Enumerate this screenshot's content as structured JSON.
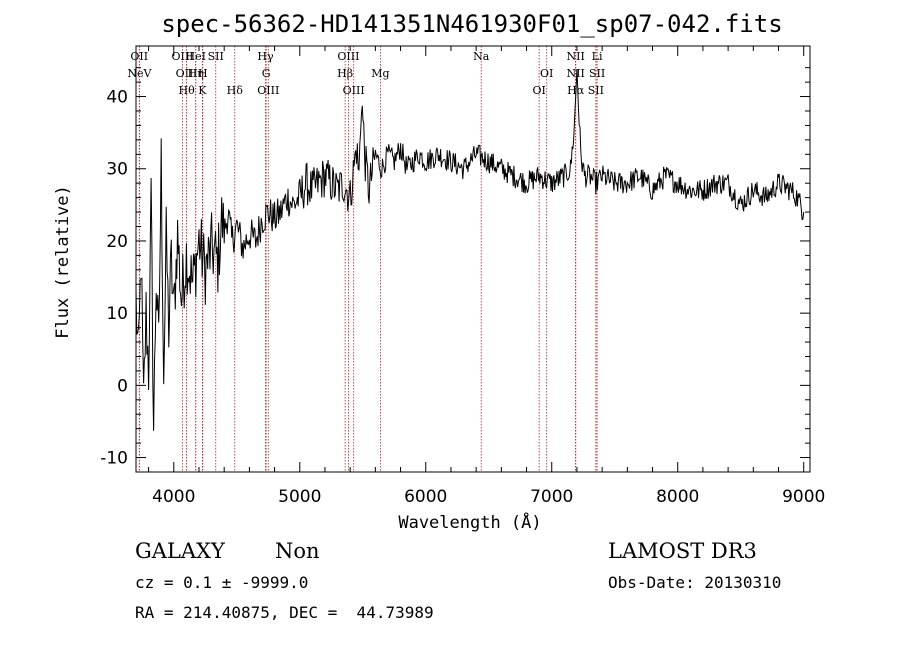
{
  "chart_data": {
    "type": "line",
    "title": "spec-56362-HD141351N461930F01_sp07-042.fits",
    "xlabel": "Wavelength (Å)",
    "ylabel": "Flux (relative)",
    "xlim": [
      3700,
      9050
    ],
    "ylim": [
      -12,
      47
    ],
    "xticks": [
      4000,
      5000,
      6000,
      7000,
      8000,
      9000
    ],
    "yticks": [
      -10,
      0,
      10,
      20,
      30,
      40
    ],
    "grid": false,
    "line_color": "#000000",
    "marker_color": "#b22222",
    "series": [
      {
        "x": [
          3700,
          3720,
          3740,
          3760,
          3780,
          3800,
          3820,
          3840,
          3860,
          3880,
          3900,
          3920,
          3940,
          3960,
          3980,
          4000,
          4030,
          4060,
          4100,
          4150,
          4200,
          4250,
          4300,
          4350,
          4380,
          4400,
          4430,
          4460,
          4500,
          4550,
          4600,
          4650,
          4700,
          4750,
          4800,
          4850,
          4900,
          4950,
          5000,
          5050,
          5100,
          5150,
          5200,
          5250,
          5300,
          5350,
          5400,
          5450,
          5470,
          5490,
          5520,
          5550,
          5600,
          5650,
          5700,
          5750,
          5800,
          5850,
          5900,
          5950,
          6000,
          6100,
          6200,
          6300,
          6400,
          6500,
          6600,
          6700,
          6800,
          6900,
          7000,
          7100,
          7150,
          7180,
          7200,
          7230,
          7260,
          7300,
          7350,
          7400,
          7500,
          7600,
          7700,
          7800,
          7900,
          8000,
          8100,
          8200,
          8300,
          8400,
          8500,
          8600,
          8700,
          8800,
          8900,
          8950,
          9000
        ],
        "y": [
          12,
          3,
          18,
          -3,
          10,
          2,
          25,
          -6,
          15,
          5,
          31,
          2,
          20,
          8,
          17,
          10,
          21,
          12,
          18,
          14,
          20,
          16,
          19,
          17,
          23,
          21,
          24,
          20,
          22,
          19,
          21,
          20,
          23,
          24,
          23,
          24,
          26,
          25,
          26,
          28,
          27,
          28,
          29,
          28,
          27,
          28,
          26,
          33,
          29,
          40,
          31,
          27,
          32,
          30,
          32,
          31,
          33,
          30,
          31,
          32,
          31,
          32,
          31,
          30,
          32,
          31,
          30,
          29,
          28,
          29,
          28,
          29,
          30,
          36,
          44,
          32,
          29,
          29,
          28,
          29,
          28,
          28,
          29,
          27,
          29,
          28,
          27,
          27,
          28,
          28,
          25,
          27,
          26,
          28,
          27,
          26,
          24
        ]
      }
    ],
    "lines": [
      {
        "wl": 3727,
        "label": "NeV",
        "row": 1
      },
      {
        "wl": 3726,
        "label": "OII",
        "row": 0
      },
      {
        "wl": 4069,
        "label": "OIII",
        "row": 0
      },
      {
        "wl": 4102,
        "label": "OIII",
        "row": 1
      },
      {
        "wl": 4102,
        "label": "Hθ",
        "row": 2
      },
      {
        "wl": 4174,
        "label": "Hη",
        "row": 1
      },
      {
        "wl": 4174,
        "label": "HeI",
        "row": 0
      },
      {
        "wl": 4227,
        "label": "K",
        "row": 2
      },
      {
        "wl": 4230,
        "label": "H",
        "row": 1
      },
      {
        "wl": 4333,
        "label": "SII",
        "row": 0
      },
      {
        "wl": 4484,
        "label": "Hδ",
        "row": 2
      },
      {
        "wl": 4728,
        "label": "Hγ",
        "row": 0
      },
      {
        "wl": 4733,
        "label": "G",
        "row": 1
      },
      {
        "wl": 4750,
        "label": "OIII",
        "row": 2
      },
      {
        "wl": 5360,
        "label": "Hβ",
        "row": 1
      },
      {
        "wl": 5386,
        "label": "OIII",
        "row": 0
      },
      {
        "wl": 5428,
        "label": "OIII",
        "row": 2
      },
      {
        "wl": 5640,
        "label": "Mg",
        "row": 1
      },
      {
        "wl": 6440,
        "label": "Na",
        "row": 0
      },
      {
        "wl": 6960,
        "label": "OI",
        "row": 1
      },
      {
        "wl": 6900,
        "label": "OI",
        "row": 2
      },
      {
        "wl": 7190,
        "label": "NII",
        "row": 0
      },
      {
        "wl": 7190,
        "label": "NII",
        "row": 1
      },
      {
        "wl": 7190,
        "label": "Hα",
        "row": 2
      },
      {
        "wl": 7360,
        "label": "Li",
        "row": 0
      },
      {
        "wl": 7360,
        "label": "SII",
        "row": 1
      },
      {
        "wl": 7350,
        "label": "SII",
        "row": 2
      }
    ]
  },
  "info": {
    "class": "GALAXY",
    "subclass": "Non",
    "survey": "LAMOST DR3",
    "cz": "cz = 0.1 ± -9999.0",
    "obs_date": "Obs-Date: 20130310",
    "radec": "RA = 214.40875, DEC =  44.73989"
  }
}
